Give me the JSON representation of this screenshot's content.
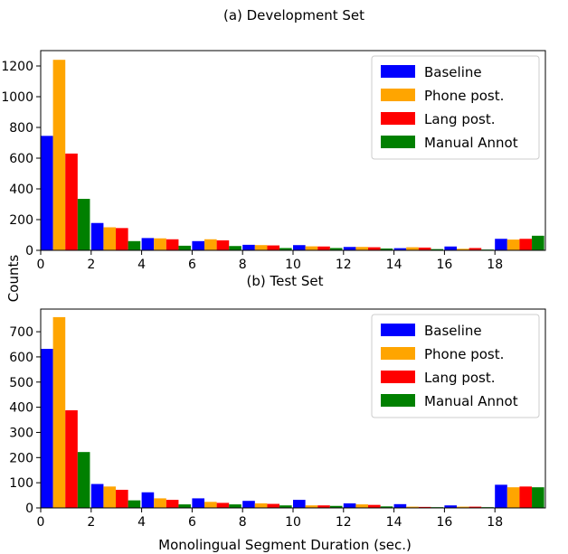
{
  "figure": {
    "ylabel": "Counts",
    "xlabel": "Monolingual Segment Duration (sec.)"
  },
  "chart_data": [
    {
      "type": "bar",
      "title": "(a) Development Set",
      "xlabel": "",
      "ylabel": "Counts",
      "xlim": [
        0,
        20
      ],
      "ylim": [
        0,
        1300
      ],
      "x_ticks": [
        0,
        2,
        4,
        6,
        8,
        10,
        12,
        14,
        16,
        18
      ],
      "y_ticks": [
        0,
        200,
        400,
        600,
        800,
        1000,
        1200
      ],
      "bin_width": 2,
      "categories": [
        "0-2",
        "2-4",
        "4-6",
        "6-8",
        "8-10",
        "10-12",
        "12-14",
        "14-16",
        "16-18",
        "18+"
      ],
      "series": [
        {
          "name": "Baseline",
          "color": "#0000ff",
          "values": [
            745,
            178,
            80,
            60,
            36,
            34,
            22,
            14,
            25,
            75
          ]
        },
        {
          "name": "Phone post.",
          "color": "#ffa500",
          "values": [
            1240,
            150,
            78,
            72,
            34,
            26,
            22,
            20,
            10,
            70
          ]
        },
        {
          "name": "Lang post.",
          "color": "#ff0000",
          "values": [
            630,
            145,
            72,
            65,
            32,
            25,
            20,
            18,
            15,
            75
          ]
        },
        {
          "name": "Manual Annot",
          "color": "#008000",
          "values": [
            335,
            60,
            30,
            28,
            15,
            15,
            12,
            8,
            5,
            95
          ]
        }
      ],
      "legend": "top-right",
      "grid": false
    },
    {
      "type": "bar",
      "title": "(b) Test Set",
      "xlabel": "Monolingual Segment Duration (sec.)",
      "ylabel": "Counts",
      "xlim": [
        0,
        20
      ],
      "ylim": [
        0,
        790
      ],
      "x_ticks": [
        0,
        2,
        4,
        6,
        8,
        10,
        12,
        14,
        16,
        18
      ],
      "y_ticks": [
        0,
        100,
        200,
        300,
        400,
        500,
        600,
        700
      ],
      "bin_width": 2,
      "categories": [
        "0-2",
        "2-4",
        "4-6",
        "6-8",
        "8-10",
        "10-12",
        "12-14",
        "14-16",
        "16-18",
        "18+"
      ],
      "series": [
        {
          "name": "Baseline",
          "color": "#0000ff",
          "values": [
            632,
            95,
            62,
            38,
            28,
            32,
            18,
            15,
            10,
            92
          ]
        },
        {
          "name": "Phone post.",
          "color": "#ffa500",
          "values": [
            758,
            85,
            38,
            24,
            18,
            10,
            14,
            5,
            5,
            82
          ]
        },
        {
          "name": "Lang post.",
          "color": "#ff0000",
          "values": [
            388,
            72,
            32,
            20,
            16,
            10,
            12,
            4,
            5,
            85
          ]
        },
        {
          "name": "Manual Annot",
          "color": "#008000",
          "values": [
            222,
            30,
            14,
            14,
            10,
            8,
            6,
            3,
            3,
            82
          ]
        }
      ],
      "legend": "top-right",
      "grid": false
    }
  ]
}
